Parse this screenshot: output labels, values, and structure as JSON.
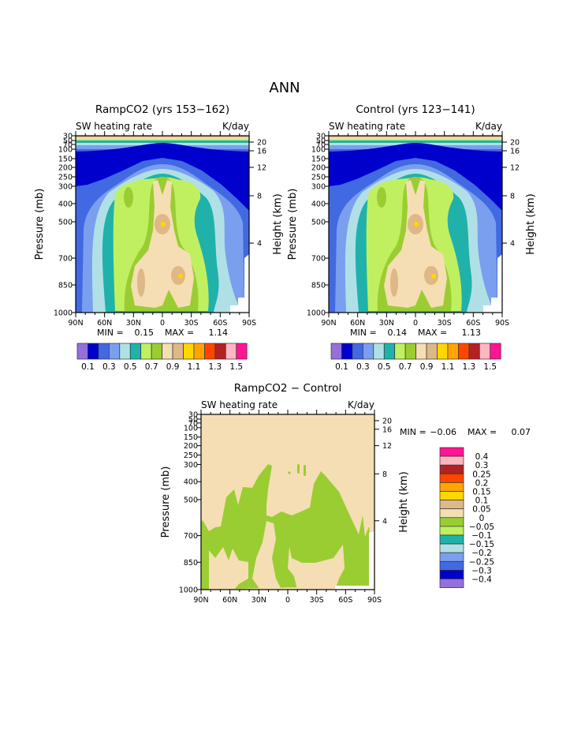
{
  "title": "ANN",
  "chart_data": [
    {
      "type": "contour",
      "title": "RampCO2 (yrs 153−162)",
      "left_string": "SW heating rate",
      "right_string": "K/day",
      "ylabel": "Pressure (mb)",
      "y2label": "Height (km)",
      "xticks": [
        "90N",
        "60N",
        "30N",
        "0",
        "30S",
        "60S",
        "90S"
      ],
      "yticks": [
        "30",
        "50",
        "70",
        "100",
        "150",
        "200",
        "250",
        "300",
        "400",
        "500",
        "700",
        "850",
        "1000"
      ],
      "y2ticks": [
        "20",
        "16",
        "12",
        "8",
        "4"
      ],
      "min_label": "MIN =",
      "min": "0.15",
      "max_label": "MAX =",
      "max": "1.14",
      "colorbar": {
        "colors": [
          "#9370DB",
          "#0000CD",
          "#4169E1",
          "#7B9FEF",
          "#B0E0E6",
          "#20B2AA",
          "#C0F060",
          "#9ACD32",
          "#F5DEB3",
          "#DEB887",
          "#FFD700",
          "#FFA500",
          "#FF4500",
          "#B22222",
          "#FFB6C1",
          "#FF1493"
        ],
        "labels": [
          "0.1",
          "0.3",
          "0.5",
          "0.7",
          "0.9",
          "1.1",
          "1.3",
          "1.5"
        ]
      }
    },
    {
      "type": "contour",
      "title": "Control (yrs 123−141)",
      "left_string": "SW heating rate",
      "right_string": "K/day",
      "ylabel": "Pressure (mb)",
      "y2label": "Height (km)",
      "xticks": [
        "90N",
        "60N",
        "30N",
        "0",
        "30S",
        "60S",
        "90S"
      ],
      "yticks": [
        "30",
        "50",
        "70",
        "100",
        "150",
        "200",
        "250",
        "300",
        "400",
        "500",
        "700",
        "850",
        "1000"
      ],
      "y2ticks": [
        "20",
        "16",
        "12",
        "8",
        "4"
      ],
      "min_label": "MIN =",
      "min": "0.14",
      "max_label": "MAX =",
      "max": "1.13",
      "colorbar": {
        "colors": [
          "#9370DB",
          "#0000CD",
          "#4169E1",
          "#7B9FEF",
          "#B0E0E6",
          "#20B2AA",
          "#C0F060",
          "#9ACD32",
          "#F5DEB3",
          "#DEB887",
          "#FFD700",
          "#FFA500",
          "#FF4500",
          "#B22222",
          "#FFB6C1",
          "#FF1493"
        ],
        "labels": [
          "0.1",
          "0.3",
          "0.5",
          "0.7",
          "0.9",
          "1.1",
          "1.3",
          "1.5"
        ]
      }
    },
    {
      "type": "contour",
      "title": "RampCO2 − Control",
      "left_string": "SW heating rate",
      "right_string": "K/day",
      "ylabel": "Pressure (mb)",
      "y2label": "Height (km)",
      "xticks": [
        "90N",
        "60N",
        "30N",
        "0",
        "30S",
        "60S",
        "90S"
      ],
      "yticks": [
        "30",
        "50",
        "70",
        "100",
        "150",
        "200",
        "250",
        "300",
        "400",
        "500",
        "700",
        "850",
        "1000"
      ],
      "y2ticks": [
        "20",
        "16",
        "12",
        "8",
        "4"
      ],
      "min_label": "MIN =",
      "min": "−0.06",
      "max_label": "MAX =",
      "max": "0.07",
      "colorbar": {
        "colors": [
          "#FF1493",
          "#FFB6C1",
          "#B22222",
          "#FF4500",
          "#FFA500",
          "#FFD700",
          "#DEB887",
          "#F5DEB3",
          "#9ACD32",
          "#C0F060",
          "#20B2AA",
          "#B0E0E6",
          "#7B9FEF",
          "#4169E1",
          "#0000CD",
          "#9370DB"
        ],
        "labels": [
          "0.4",
          "0.3",
          "0.25",
          "0.2",
          "0.15",
          "0.1",
          "0.05",
          "0",
          "−0.05",
          "−0.1",
          "−0.15",
          "−0.2",
          "−0.25",
          "−0.3",
          "−0.4"
        ]
      }
    }
  ]
}
